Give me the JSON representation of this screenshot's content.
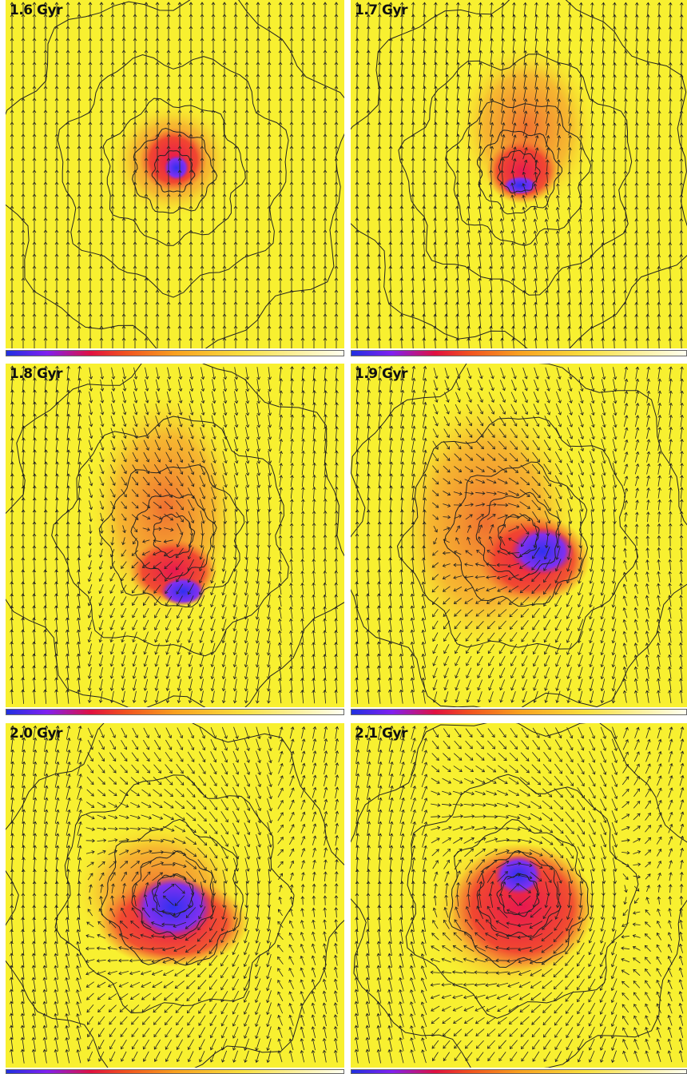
{
  "panels": [
    {
      "label": "1.6 Gyr"
    },
    {
      "label": "1.7 Gyr"
    },
    {
      "label": "1.8 Gyr"
    },
    {
      "label": "1.9 Gyr"
    },
    {
      "label": "2.0 Gyr"
    },
    {
      "label": "2.1 Gyr"
    }
  ]
}
